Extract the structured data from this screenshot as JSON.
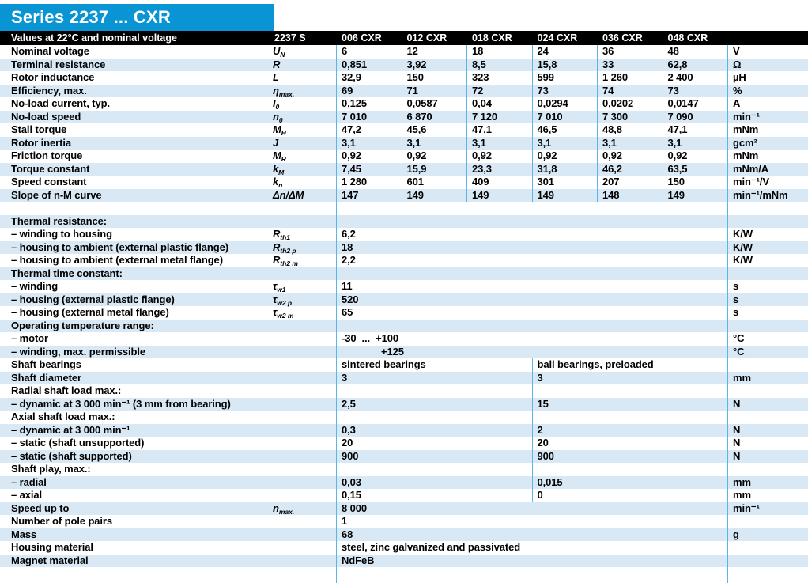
{
  "title": "Series 2237 ... CXR",
  "colors": {
    "brand_blue": "#0995d3",
    "row_blue": "#d8e8f5",
    "divider_blue": "#58b7e6",
    "header_black": "#000000"
  },
  "header": {
    "label": "Values at 22°C and nominal voltage",
    "series_col": "2237 S",
    "columns": [
      "006 CXR",
      "012 CXR",
      "018 CXR",
      "024 CXR",
      "036 CXR",
      "048 CXR"
    ]
  },
  "table": {
    "rows": [
      {
        "t": "six",
        "shade": "white",
        "label": "Nominal voltage",
        "sym": "U",
        "sub": "N",
        "values": [
          "6",
          "12",
          "18",
          "24",
          "36",
          "48"
        ],
        "unit": "V"
      },
      {
        "t": "six",
        "shade": "blue",
        "label": "Terminal resistance",
        "sym": "R",
        "sub": "",
        "values": [
          "0,851",
          "3,92",
          "8,5",
          "15,8",
          "33",
          "62,8"
        ],
        "unit": "Ω"
      },
      {
        "t": "six",
        "shade": "white",
        "label": "Rotor inductance",
        "sym": "L",
        "sub": "",
        "values": [
          "32,9",
          "150",
          "323",
          "599",
          "1 260",
          "2 400"
        ],
        "unit": "µH"
      },
      {
        "t": "six",
        "shade": "blue",
        "label": "Efficiency, max.",
        "sym": "η",
        "sub": "max.",
        "values": [
          "69",
          "71",
          "72",
          "73",
          "74",
          "73"
        ],
        "unit": "%"
      },
      {
        "t": "six",
        "shade": "white",
        "label": "No-load current, typ.",
        "sym": "I",
        "sub": "0",
        "values": [
          "0,125",
          "0,0587",
          "0,04",
          "0,0294",
          "0,0202",
          "0,0147"
        ],
        "unit": "A"
      },
      {
        "t": "six",
        "shade": "blue",
        "label": "No-load speed",
        "sym": "n",
        "sub": "0",
        "values": [
          "7 010",
          "6 870",
          "7 120",
          "7 010",
          "7 300",
          "7 090"
        ],
        "unit": "min⁻¹"
      },
      {
        "t": "six",
        "shade": "white",
        "label": "Stall torque",
        "sym": "M",
        "sub": "H",
        "values": [
          "47,2",
          "45,6",
          "47,1",
          "46,5",
          "48,8",
          "47,1"
        ],
        "unit": "mNm"
      },
      {
        "t": "six",
        "shade": "blue",
        "label": "Rotor inertia",
        "sym": "J",
        "sub": "",
        "values": [
          "3,1",
          "3,1",
          "3,1",
          "3,1",
          "3,1",
          "3,1"
        ],
        "unit": "gcm²"
      },
      {
        "t": "six",
        "shade": "white",
        "label": "Friction torque",
        "sym": "M",
        "sub": "R",
        "values": [
          "0,92",
          "0,92",
          "0,92",
          "0,92",
          "0,92",
          "0,92"
        ],
        "unit": "mNm"
      },
      {
        "t": "six",
        "shade": "blue",
        "label": "Torque constant",
        "sym": "k",
        "sub": "M",
        "values": [
          "7,45",
          "15,9",
          "23,3",
          "31,8",
          "46,2",
          "63,5"
        ],
        "unit": "mNm/A"
      },
      {
        "t": "six",
        "shade": "white",
        "label": "Speed constant",
        "sym": "k",
        "sub": "n",
        "values": [
          "1 280",
          "601",
          "409",
          "301",
          "207",
          "150"
        ],
        "unit": "min⁻¹/V"
      },
      {
        "t": "six",
        "shade": "blue",
        "label": "Slope of n-M curve",
        "sym": "Δn/ΔM",
        "sub": "",
        "values": [
          "147",
          "149",
          "149",
          "149",
          "148",
          "149"
        ],
        "unit": "min⁻¹/mNm"
      },
      {
        "t": "gap",
        "shade": "white",
        "label": "",
        "sym": "",
        "sub": "",
        "values": [],
        "unit": ""
      },
      {
        "t": "sect",
        "shade": "blue",
        "label": "Thermal resistance:",
        "sym": "",
        "sub": "",
        "values": [],
        "unit": ""
      },
      {
        "t": "span",
        "shade": "white",
        "label": "– winding to housing",
        "sym": "R",
        "sub": "th1",
        "values": [
          "6,2"
        ],
        "unit": "K/W"
      },
      {
        "t": "span",
        "shade": "blue",
        "label": "– housing to ambient (external plastic flange)",
        "sym": "R",
        "sub": "th2 p",
        "values": [
          "18"
        ],
        "unit": "K/W"
      },
      {
        "t": "span",
        "shade": "white",
        "label": "– housing to ambient (external metal flange)",
        "sym": "R",
        "sub": "th2 m",
        "values": [
          "2,2"
        ],
        "unit": "K/W"
      },
      {
        "t": "sect",
        "shade": "blue",
        "label": "Thermal time constant:",
        "sym": "",
        "sub": "",
        "values": [],
        "unit": ""
      },
      {
        "t": "span",
        "shade": "white",
        "label": "– winding",
        "sym": "τ",
        "sub": "w1",
        "values": [
          "11"
        ],
        "unit": "s"
      },
      {
        "t": "span",
        "shade": "blue",
        "label": "– housing (external plastic flange)",
        "sym": "τ",
        "sub": "w2 p",
        "values": [
          "520"
        ],
        "unit": "s"
      },
      {
        "t": "span",
        "shade": "white",
        "label": "– housing (external metal flange)",
        "sym": "τ",
        "sub": "w2 m",
        "values": [
          "65"
        ],
        "unit": "s"
      },
      {
        "t": "sect",
        "shade": "blue",
        "label": "Operating temperature range:",
        "sym": "",
        "sub": "",
        "values": [],
        "unit": ""
      },
      {
        "t": "span",
        "shade": "white",
        "label": "– motor",
        "sym": "",
        "sub": "",
        "values": [
          "-30  ...  +100"
        ],
        "unit": "°C"
      },
      {
        "t": "span",
        "shade": "blue",
        "label": "– winding, max. permissible",
        "sym": "",
        "sub": "",
        "values": [
          "+125"
        ],
        "unit": "°C",
        "indent": 50
      },
      {
        "t": "split",
        "shade": "white",
        "label": "Shaft bearings",
        "sym": "",
        "sub": "",
        "values": [
          "sintered bearings",
          "ball bearings, preloaded"
        ],
        "unit": ""
      },
      {
        "t": "split",
        "shade": "blue",
        "label": "Shaft diameter",
        "sym": "",
        "sub": "",
        "values": [
          "3",
          "3"
        ],
        "unit": "mm"
      },
      {
        "t": "sect2",
        "shade": "white",
        "label": "Radial shaft load max.:",
        "sym": "",
        "sub": "",
        "values": [],
        "unit": ""
      },
      {
        "t": "split",
        "shade": "blue",
        "label": "– dynamic at 3 000 min⁻¹ (3 mm from bearing)",
        "sym": "",
        "sub": "",
        "values": [
          "2,5",
          "15"
        ],
        "unit": "N"
      },
      {
        "t": "sect2",
        "shade": "white",
        "label": "Axial shaft load max.:",
        "sym": "",
        "sub": "",
        "values": [],
        "unit": ""
      },
      {
        "t": "split",
        "shade": "blue",
        "label": "– dynamic at 3 000 min⁻¹",
        "sym": "",
        "sub": "",
        "values": [
          "0,3",
          "2"
        ],
        "unit": "N"
      },
      {
        "t": "split",
        "shade": "white",
        "label": "– static (shaft unsupported)",
        "sym": "",
        "sub": "",
        "values": [
          "20",
          "20"
        ],
        "unit": "N"
      },
      {
        "t": "split",
        "shade": "blue",
        "label": "– static (shaft supported)",
        "sym": "",
        "sub": "",
        "values": [
          "900",
          "900"
        ],
        "unit": "N"
      },
      {
        "t": "sect2",
        "shade": "white",
        "label": "Shaft play, max.:",
        "sym": "",
        "sub": "",
        "values": [],
        "unit": ""
      },
      {
        "t": "split",
        "shade": "blue",
        "label": "– radial",
        "sym": "",
        "sub": "",
        "values": [
          "0,03",
          "0,015"
        ],
        "unit": "mm"
      },
      {
        "t": "split",
        "shade": "white",
        "label": "– axial",
        "sym": "",
        "sub": "",
        "values": [
          "0,15",
          "0"
        ],
        "unit": "mm"
      },
      {
        "t": "span",
        "shade": "blue",
        "label": "Speed up to",
        "sym": "n",
        "sub": "max.",
        "values": [
          "8 000"
        ],
        "unit": "min⁻¹"
      },
      {
        "t": "span",
        "shade": "white",
        "label": "Number of pole pairs",
        "sym": "",
        "sub": "",
        "values": [
          "1"
        ],
        "unit": ""
      },
      {
        "t": "span",
        "shade": "blue",
        "label": "Mass",
        "sym": "",
        "sub": "",
        "values": [
          "68"
        ],
        "unit": "g"
      },
      {
        "t": "span",
        "shade": "white",
        "label": "Housing material",
        "sym": "",
        "sub": "",
        "values": [
          "steel, zinc galvanized and passivated"
        ],
        "unit": ""
      },
      {
        "t": "span",
        "shade": "blue",
        "label": "Magnet material",
        "sym": "",
        "sub": "",
        "values": [
          "NdFeB"
        ],
        "unit": ""
      }
    ]
  }
}
